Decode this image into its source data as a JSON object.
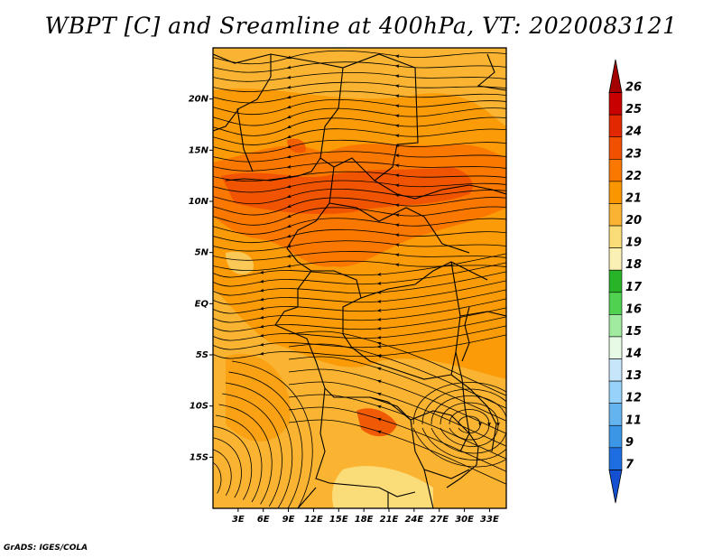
{
  "title": "WBPT [C] and Sreamline at 400hPa, VT: 2020083121",
  "credit": "GrADS: IGES/COLA",
  "map": {
    "lat_labels": [
      "20N",
      "15N",
      "10N",
      "5N",
      "EQ",
      "5S",
      "10S",
      "15S"
    ],
    "lat_values": [
      20,
      15,
      10,
      5,
      0,
      -5,
      -10,
      -15
    ],
    "lon_labels": [
      "3E",
      "6E",
      "9E",
      "12E",
      "15E",
      "18E",
      "21E",
      "24E",
      "27E",
      "30E",
      "33E"
    ],
    "lon_values": [
      3,
      6,
      9,
      12,
      15,
      18,
      21,
      24,
      27,
      30,
      33
    ],
    "lon_range": [
      0,
      35
    ],
    "lat_range": [
      -20,
      25
    ]
  },
  "colorbar": {
    "labels": [
      "26",
      "25",
      "24",
      "23",
      "22",
      "21",
      "20",
      "19",
      "18",
      "17",
      "16",
      "15",
      "14",
      "13",
      "12",
      "11",
      "9",
      "7"
    ],
    "colors": [
      "#a50000",
      "#c80000",
      "#e12800",
      "#f05000",
      "#fa7800",
      "#fa9600",
      "#fab432",
      "#fadc78",
      "#faf0b4",
      "#28b428",
      "#50d250",
      "#a0eba0",
      "#e6fae6",
      "#c8e6fa",
      "#96d2fa",
      "#64b4f0",
      "#3c96e6",
      "#1e6ee1",
      "#1450d2"
    ]
  }
}
